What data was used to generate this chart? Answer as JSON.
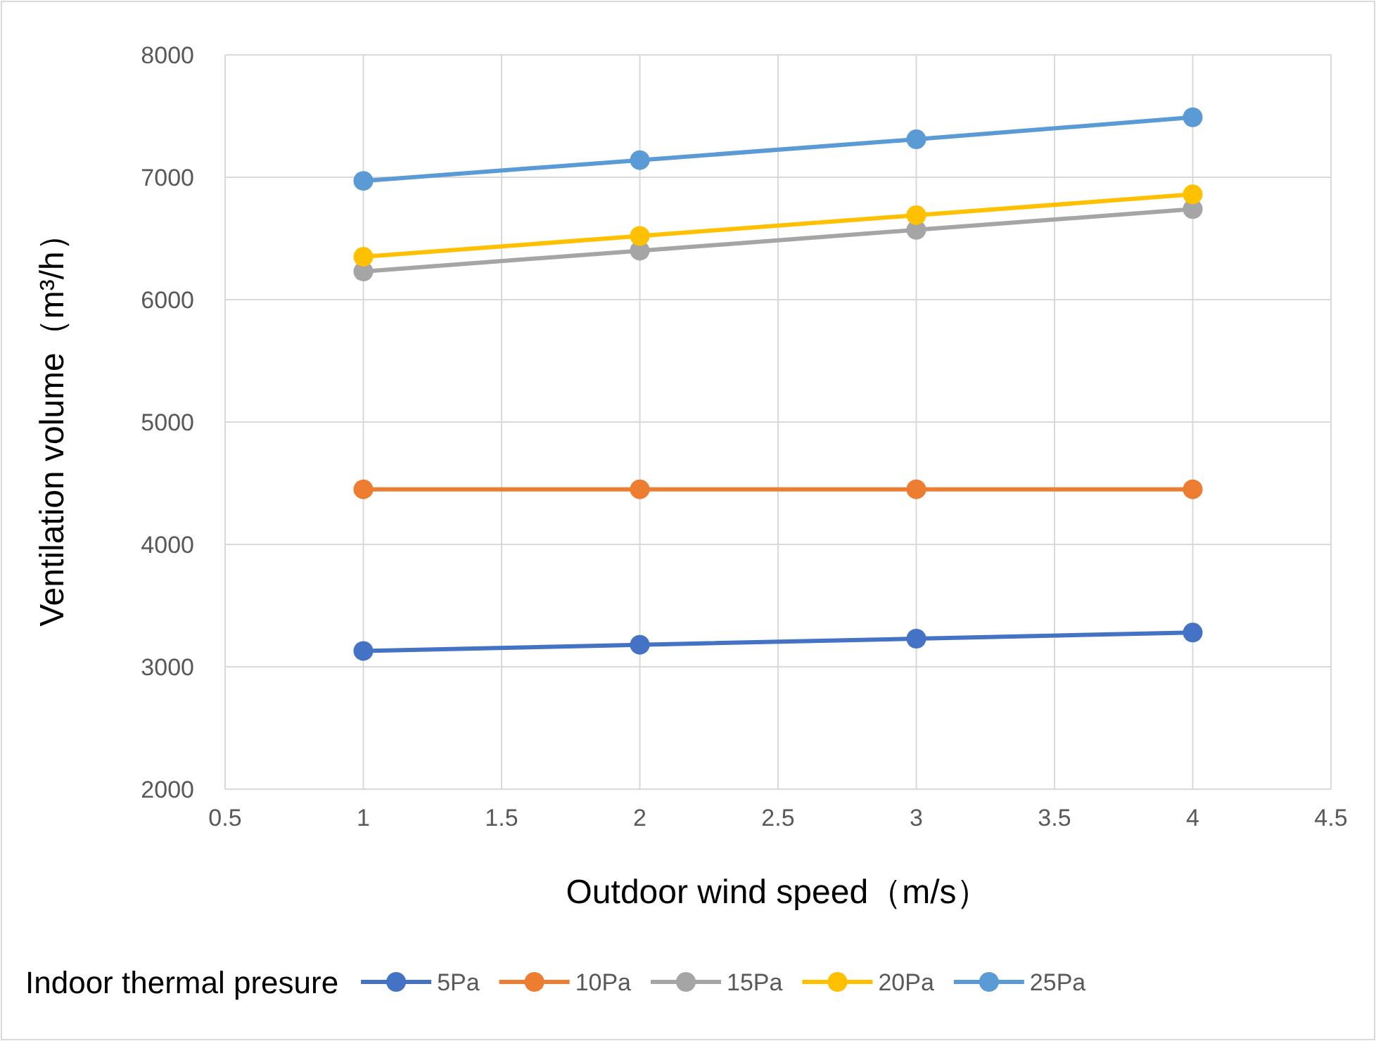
{
  "chart_data": {
    "type": "line",
    "xlabel": "Outdoor wind speed（m/s）",
    "ylabel": "Ventilation volume（m³/h）",
    "legend_title": "Indoor thermal presure",
    "x": [
      1,
      2,
      3,
      4
    ],
    "series": [
      {
        "name": "5Pa",
        "color": "#4472c4",
        "values": [
          3130,
          3180,
          3230,
          3280
        ]
      },
      {
        "name": "10Pa",
        "color": "#ed7d31",
        "values": [
          4450,
          4450,
          4450,
          4450
        ]
      },
      {
        "name": "15Pa",
        "color": "#a5a5a5",
        "values": [
          6230,
          6400,
          6570,
          6740
        ]
      },
      {
        "name": "20Pa",
        "color": "#ffc000",
        "values": [
          6350,
          6520,
          6690,
          6860
        ]
      },
      {
        "name": "25Pa",
        "color": "#5b9bd5",
        "values": [
          6970,
          7140,
          7310,
          7490
        ]
      }
    ],
    "xlim": [
      0.5,
      4.5
    ],
    "xticks": [
      0.5,
      1,
      1.5,
      2,
      2.5,
      3,
      3.5,
      4,
      4.5
    ],
    "ylim": [
      2000,
      8000
    ],
    "yticks": [
      2000,
      3000,
      4000,
      5000,
      6000,
      7000,
      8000
    ],
    "grid": true,
    "legend": "bottom",
    "marker": "circle",
    "line_style": "solid"
  }
}
